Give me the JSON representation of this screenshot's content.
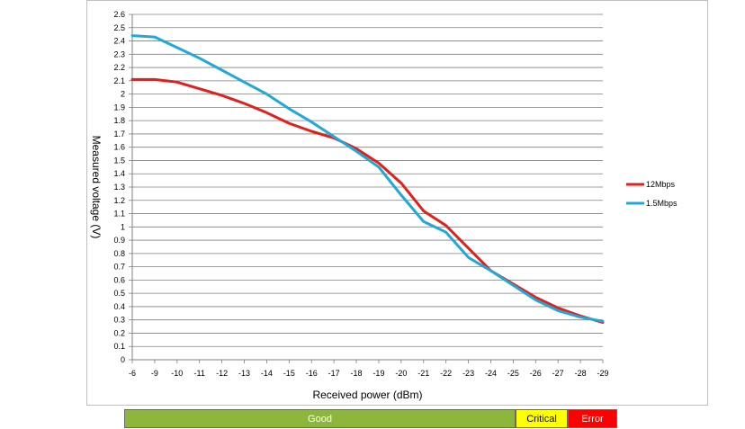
{
  "chart_data": {
    "type": "line",
    "xlabel": "Received power (dBm)",
    "ylabel": "Measured voltage (V)",
    "x": [
      -6,
      -9,
      -10,
      -11,
      -12,
      -13,
      -14,
      -15,
      -16,
      -17,
      -18,
      -19,
      -20,
      -21,
      -22,
      -23,
      -24,
      -25,
      -26,
      -27,
      -28,
      -29
    ],
    "x_ticks": [
      "-6",
      "-9",
      "-10",
      "-11",
      "-12",
      "-13",
      "-14",
      "-15",
      "-16",
      "-17",
      "-18",
      "-19",
      "-20",
      "-21",
      "-22",
      "-23",
      "-24",
      "-25",
      "-26",
      "-27",
      "-28",
      "-29"
    ],
    "ylim": [
      0,
      2.6
    ],
    "y_ticks": [
      "0",
      "0.1",
      "0.2",
      "0.3",
      "0.4",
      "0.5",
      "0.6",
      "0.7",
      "0.8",
      "0.9",
      "1",
      "1.1",
      "1.2",
      "1.3",
      "1.4",
      "1.5",
      "1.6",
      "1.7",
      "1.8",
      "1.9",
      "2",
      "2.1",
      "2.2",
      "2.3",
      "2.4",
      "2.5",
      "2.6"
    ],
    "grid": true,
    "legend_position": "right",
    "series": [
      {
        "name": "12Mbps",
        "color": "#e0201b",
        "values": [
          2.11,
          2.11,
          2.09,
          2.04,
          1.99,
          1.93,
          1.86,
          1.78,
          1.72,
          1.67,
          1.59,
          1.48,
          1.33,
          1.12,
          1.01,
          0.84,
          0.67,
          0.57,
          0.47,
          0.39,
          0.33,
          0.28
        ]
      },
      {
        "name": "1.5Mbps",
        "color": "#22a8d8",
        "values": [
          2.44,
          2.43,
          2.35,
          2.27,
          2.18,
          2.09,
          2.0,
          1.89,
          1.79,
          1.68,
          1.57,
          1.45,
          1.24,
          1.04,
          0.96,
          0.77,
          0.67,
          0.56,
          0.45,
          0.37,
          0.32,
          0.29
        ]
      }
    ]
  },
  "status_bar": [
    {
      "label": "Good",
      "bg": "#8db63c",
      "fg": "#ffffff"
    },
    {
      "label": "Critical",
      "bg": "#ffff00",
      "fg": "#000000"
    },
    {
      "label": "Error",
      "bg": "#ff0000",
      "fg": "#ffffff"
    }
  ]
}
